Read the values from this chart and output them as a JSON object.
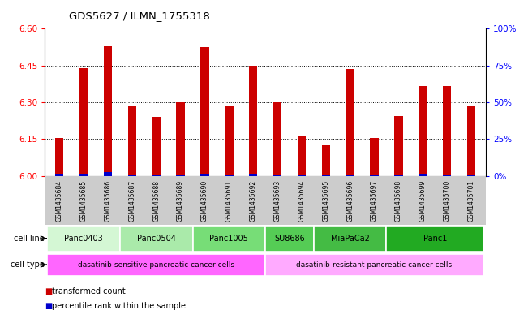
{
  "title": "GDS5627 / ILMN_1755318",
  "samples": [
    "GSM1435684",
    "GSM1435685",
    "GSM1435686",
    "GSM1435687",
    "GSM1435688",
    "GSM1435689",
    "GSM1435690",
    "GSM1435691",
    "GSM1435692",
    "GSM1435693",
    "GSM1435694",
    "GSM1435695",
    "GSM1435696",
    "GSM1435697",
    "GSM1435698",
    "GSM1435699",
    "GSM1435700",
    "GSM1435701"
  ],
  "red_values": [
    6.155,
    6.44,
    6.53,
    6.285,
    6.24,
    6.3,
    6.525,
    6.285,
    6.45,
    6.3,
    6.165,
    6.125,
    6.435,
    6.155,
    6.245,
    6.365,
    6.365,
    6.285
  ],
  "blue_values": [
    0.008,
    0.008,
    0.015,
    0.006,
    0.007,
    0.006,
    0.008,
    0.007,
    0.008,
    0.006,
    0.006,
    0.006,
    0.007,
    0.006,
    0.007,
    0.008,
    0.007,
    0.007
  ],
  "ylim_left": [
    6.0,
    6.6
  ],
  "ylim_right": [
    0,
    100
  ],
  "yticks_left": [
    6.0,
    6.15,
    6.3,
    6.45,
    6.6
  ],
  "yticks_right": [
    0,
    25,
    50,
    75,
    100
  ],
  "ytick_labels_right": [
    "0%",
    "25%",
    "50%",
    "75%",
    "100%"
  ],
  "bar_width": 0.35,
  "red_color": "#cc0000",
  "blue_color": "#0000cc",
  "cell_lines": [
    {
      "label": "Panc0403",
      "start": 0,
      "end": 3,
      "color": "#d4f7d4"
    },
    {
      "label": "Panc0504",
      "start": 3,
      "end": 6,
      "color": "#aaeaaa"
    },
    {
      "label": "Panc1005",
      "start": 6,
      "end": 9,
      "color": "#77dd77"
    },
    {
      "label": "SU8686",
      "start": 9,
      "end": 11,
      "color": "#55cc55"
    },
    {
      "label": "MiaPaCa2",
      "start": 11,
      "end": 14,
      "color": "#44bb44"
    },
    {
      "label": "Panc1",
      "start": 14,
      "end": 18,
      "color": "#22aa22"
    }
  ],
  "cell_type_sensitive": {
    "label": "dasatinib-sensitive pancreatic cancer cells",
    "start": 0,
    "end": 9,
    "color": "#ff66ff"
  },
  "cell_type_resistant": {
    "label": "dasatinib-resistant pancreatic cancer cells",
    "start": 9,
    "end": 18,
    "color": "#ffaaff"
  },
  "legend_red": "transformed count",
  "legend_blue": "percentile rank within the sample",
  "cell_line_label": "cell line",
  "cell_type_label": "cell type",
  "xtick_bg_color": "#cccccc"
}
